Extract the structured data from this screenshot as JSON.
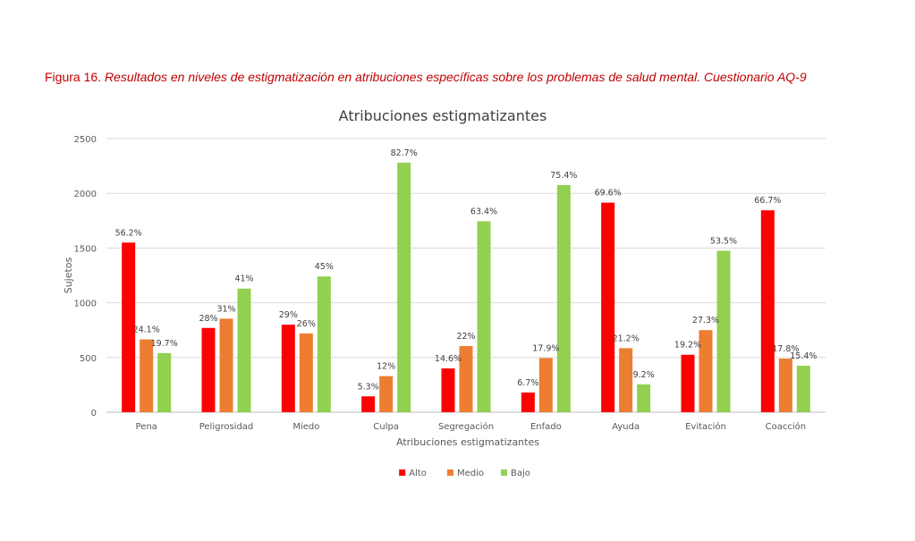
{
  "caption": {
    "label": "Figura 16.",
    "text": "Resultados en niveles de estigmatización en atribuciones específicas sobre los problemas de salud mental. Cuestionario AQ-9"
  },
  "chart_data": {
    "type": "bar",
    "title": "Atribuciones estigmatizantes",
    "xlabel": "Atribuciones estigmatizantes",
    "ylabel": "Sujetos",
    "ylim": [
      0,
      2500
    ],
    "yticks": [
      0,
      500,
      1000,
      1500,
      2000,
      2500
    ],
    "grid": true,
    "legend_position": "bottom",
    "categories": [
      "Pena",
      "Peligrosidad",
      "Miedo",
      "Culpa",
      "Segregación",
      "Enfado",
      "Ayuda",
      "Evitación",
      "Coacción"
    ],
    "series": [
      {
        "name": "Alto",
        "color": "#ff0000",
        "values": [
          1550,
          770,
          800,
          145,
          400,
          180,
          1915,
          525,
          1845
        ],
        "labels": [
          "56.2%",
          "28%",
          "29%",
          "5.3%",
          "14.6%",
          "6.7%",
          "69.6%",
          "19.2%",
          "66.7%"
        ]
      },
      {
        "name": "Medio",
        "color": "#ed7d31",
        "values": [
          665,
          855,
          720,
          330,
          605,
          495,
          585,
          750,
          490
        ],
        "labels": [
          "24.1%",
          "31%",
          "26%",
          "12%",
          "22%",
          "17.9%",
          "21.2%",
          "27.3%",
          "17.8%"
        ]
      },
      {
        "name": "Bajo",
        "color": "#92d050",
        "values": [
          540,
          1130,
          1240,
          2280,
          1745,
          2075,
          255,
          1475,
          425
        ],
        "labels": [
          "19.7%",
          "41%",
          "45%",
          "82.7%",
          "63.4%",
          "75.4%",
          "9.2%",
          "53.5%",
          "15.4%"
        ]
      }
    ]
  }
}
